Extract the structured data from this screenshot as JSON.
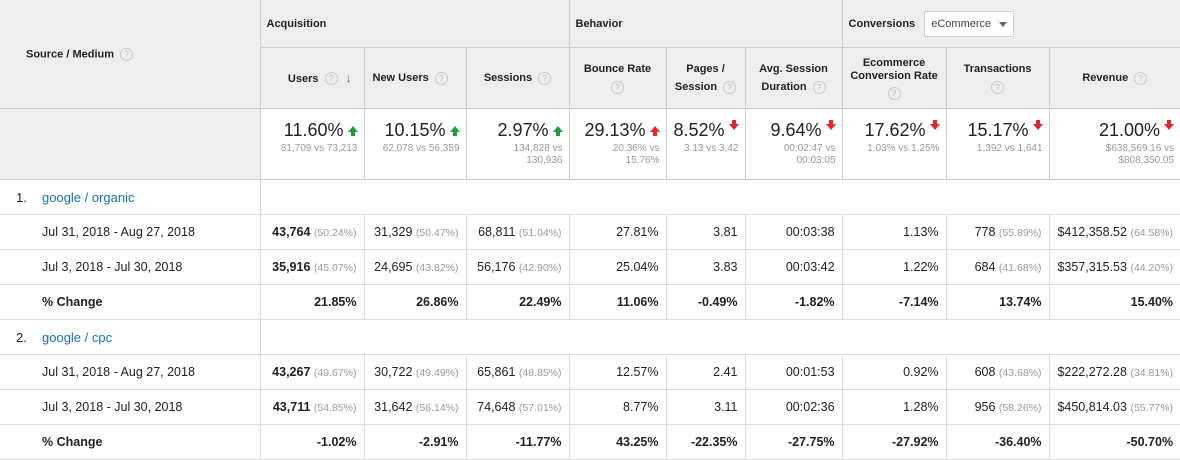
{
  "header": {
    "source_medium": "Source / Medium",
    "acquisition": "Acquisition",
    "behavior": "Behavior",
    "conversions": "Conversions",
    "conversions_select": "eCommerce",
    "columns": {
      "users": "Users",
      "new_users": "New Users",
      "sessions": "Sessions",
      "bounce_rate": "Bounce Rate",
      "pages_1": "Pages /",
      "pages_2": "Session",
      "avg_1": "Avg. Session",
      "avg_2": "Duration",
      "ecr_1": "Ecommerce",
      "ecr_2": "Conversion Rate",
      "transactions": "Transactions",
      "revenue": "Revenue"
    }
  },
  "summary": [
    {
      "pct": "11.60%",
      "dir": "up",
      "sub": "81,709 vs 73,213"
    },
    {
      "pct": "10.15%",
      "dir": "up",
      "sub": "62,078 vs 56,359"
    },
    {
      "pct": "2.97%",
      "dir": "up",
      "sub": "134,828 vs 130,936"
    },
    {
      "pct": "29.13%",
      "dir": "upred",
      "sub": "20.36% vs 15.76%"
    },
    {
      "pct": "8.52%",
      "dir": "down",
      "sub": "3.13 vs 3.42"
    },
    {
      "pct": "9.64%",
      "dir": "down",
      "sub": "00:02:47 vs 00:03:05"
    },
    {
      "pct": "17.62%",
      "dir": "down",
      "sub": "1.03% vs 1.25%"
    },
    {
      "pct": "15.17%",
      "dir": "down",
      "sub": "1,392 vs 1,641"
    },
    {
      "pct": "21.00%",
      "dir": "down",
      "sub": "$638,569.16 vs $808,350.05"
    }
  ],
  "sources": [
    {
      "index": "1.",
      "name": "google / organic",
      "rows": [
        {
          "label": "Jul 31, 2018 - Aug 27, 2018",
          "users": "43,764",
          "users_p": "(50.24%)",
          "new_users": "31,329",
          "new_users_p": "(50.47%)",
          "sessions": "68,811",
          "sessions_p": "(51.04%)",
          "bounce": "27.81%",
          "pages": "3.81",
          "duration": "00:03:38",
          "ecr": "1.13%",
          "transactions": "778",
          "transactions_p": "(55.89%)",
          "revenue": "$412,358.52",
          "revenue_p": "(64.58%)"
        },
        {
          "label": "Jul 3, 2018 - Jul 30, 2018",
          "users": "35,916",
          "users_p": "(45.07%)",
          "new_users": "24,695",
          "new_users_p": "(43.82%)",
          "sessions": "56,176",
          "sessions_p": "(42.90%)",
          "bounce": "25.04%",
          "pages": "3.83",
          "duration": "00:03:42",
          "ecr": "1.22%",
          "transactions": "684",
          "transactions_p": "(41.68%)",
          "revenue": "$357,315.53",
          "revenue_p": "(44.20%)"
        }
      ],
      "change": {
        "label": "% Change",
        "users": "21.85%",
        "new_users": "26.86%",
        "sessions": "22.49%",
        "bounce": "11.06%",
        "pages": "-0.49%",
        "duration": "-1.82%",
        "ecr": "-7.14%",
        "transactions": "13.74%",
        "revenue": "15.40%"
      }
    },
    {
      "index": "2.",
      "name": "google / cpc",
      "rows": [
        {
          "label": "Jul 31, 2018 - Aug 27, 2018",
          "users": "43,267",
          "users_p": "(49.67%)",
          "new_users": "30,722",
          "new_users_p": "(49.49%)",
          "sessions": "65,861",
          "sessions_p": "(48.85%)",
          "bounce": "12.57%",
          "pages": "2.41",
          "duration": "00:01:53",
          "ecr": "0.92%",
          "transactions": "608",
          "transactions_p": "(43.68%)",
          "revenue": "$222,272.28",
          "revenue_p": "(34.81%)"
        },
        {
          "label": "Jul 3, 2018 - Jul 30, 2018",
          "users": "43,711",
          "users_p": "(54.85%)",
          "new_users": "31,642",
          "new_users_p": "(56.14%)",
          "sessions": "74,648",
          "sessions_p": "(57.01%)",
          "bounce": "8.77%",
          "pages": "3.11",
          "duration": "00:02:36",
          "ecr": "1.28%",
          "transactions": "956",
          "transactions_p": "(58.26%)",
          "revenue": "$450,814.03",
          "revenue_p": "(55.77%)"
        }
      ],
      "change": {
        "label": "% Change",
        "users": "-1.02%",
        "new_users": "-2.91%",
        "sessions": "-11.77%",
        "bounce": "43.25%",
        "pages": "-22.35%",
        "duration": "-27.75%",
        "ecr": "-27.92%",
        "transactions": "-36.40%",
        "revenue": "-50.70%"
      }
    }
  ],
  "colors": {
    "up_good": "#1e9e3e",
    "down_bad": "#e1282a",
    "link": "#1a6fb5"
  }
}
